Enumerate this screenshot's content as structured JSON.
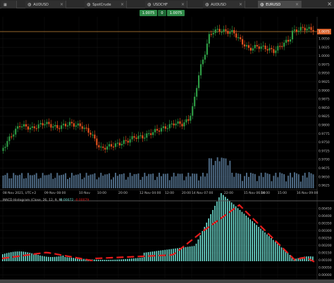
{
  "tabs": [
    {
      "label": "AUDUSD",
      "icon": "chart-icon"
    },
    {
      "label": "SpotCrude",
      "icon": "chart-icon"
    },
    {
      "label": "USDCHF",
      "icon": "chart-icon"
    },
    {
      "label": "AUDUSD",
      "icon": "chart-icon"
    },
    {
      "label": "EURUSD",
      "icon": "chart-icon"
    }
  ],
  "trade_panel": {
    "sell_price": "1.0075",
    "mid": "0",
    "buy_price": "1.0075"
  },
  "price_axis": [
    "1.0050",
    "1.0025",
    "1.0000",
    "0.9975",
    "0.9950",
    "0.9925",
    "0.9900",
    "0.9875",
    "0.9850",
    "0.9825",
    "0.9800",
    "0.9775",
    "0.9750",
    "0.9725",
    "0.9700",
    "0.9675",
    "0.9650",
    "0.9625"
  ],
  "current_price": "1.0075",
  "time_axis": [
    "08 Nov 2021, UTC+2",
    "09 Nov 08:00",
    "10 Nov",
    "10:00",
    "20:00",
    "12 Nov 04:00",
    "12:00",
    "20:00",
    "14 Nov 07:00",
    "22:00",
    "15 Nov 06:00",
    "14:00",
    "15:00",
    "16 Nov 09:00"
  ],
  "indicator": {
    "label": "MACD Histogram (Close, 26, 12, 9, 9)",
    "value1": "-0.00072",
    "value2": "-0.00079"
  },
  "macd_axis": [
    "0.00450",
    "0.00400",
    "0.00350",
    "0.00300",
    "0.00250",
    "0.00200",
    "0.00150",
    "0.00100",
    "0.00050",
    "0.00000",
    "-0.00050"
  ],
  "colors": {
    "bull": "#2e9d45",
    "bear": "#e8531f",
    "volume": "#4e6b86",
    "histogram": "#6fe0d3",
    "signal": "#e31b1b",
    "price_line": "#c9893a"
  }
}
